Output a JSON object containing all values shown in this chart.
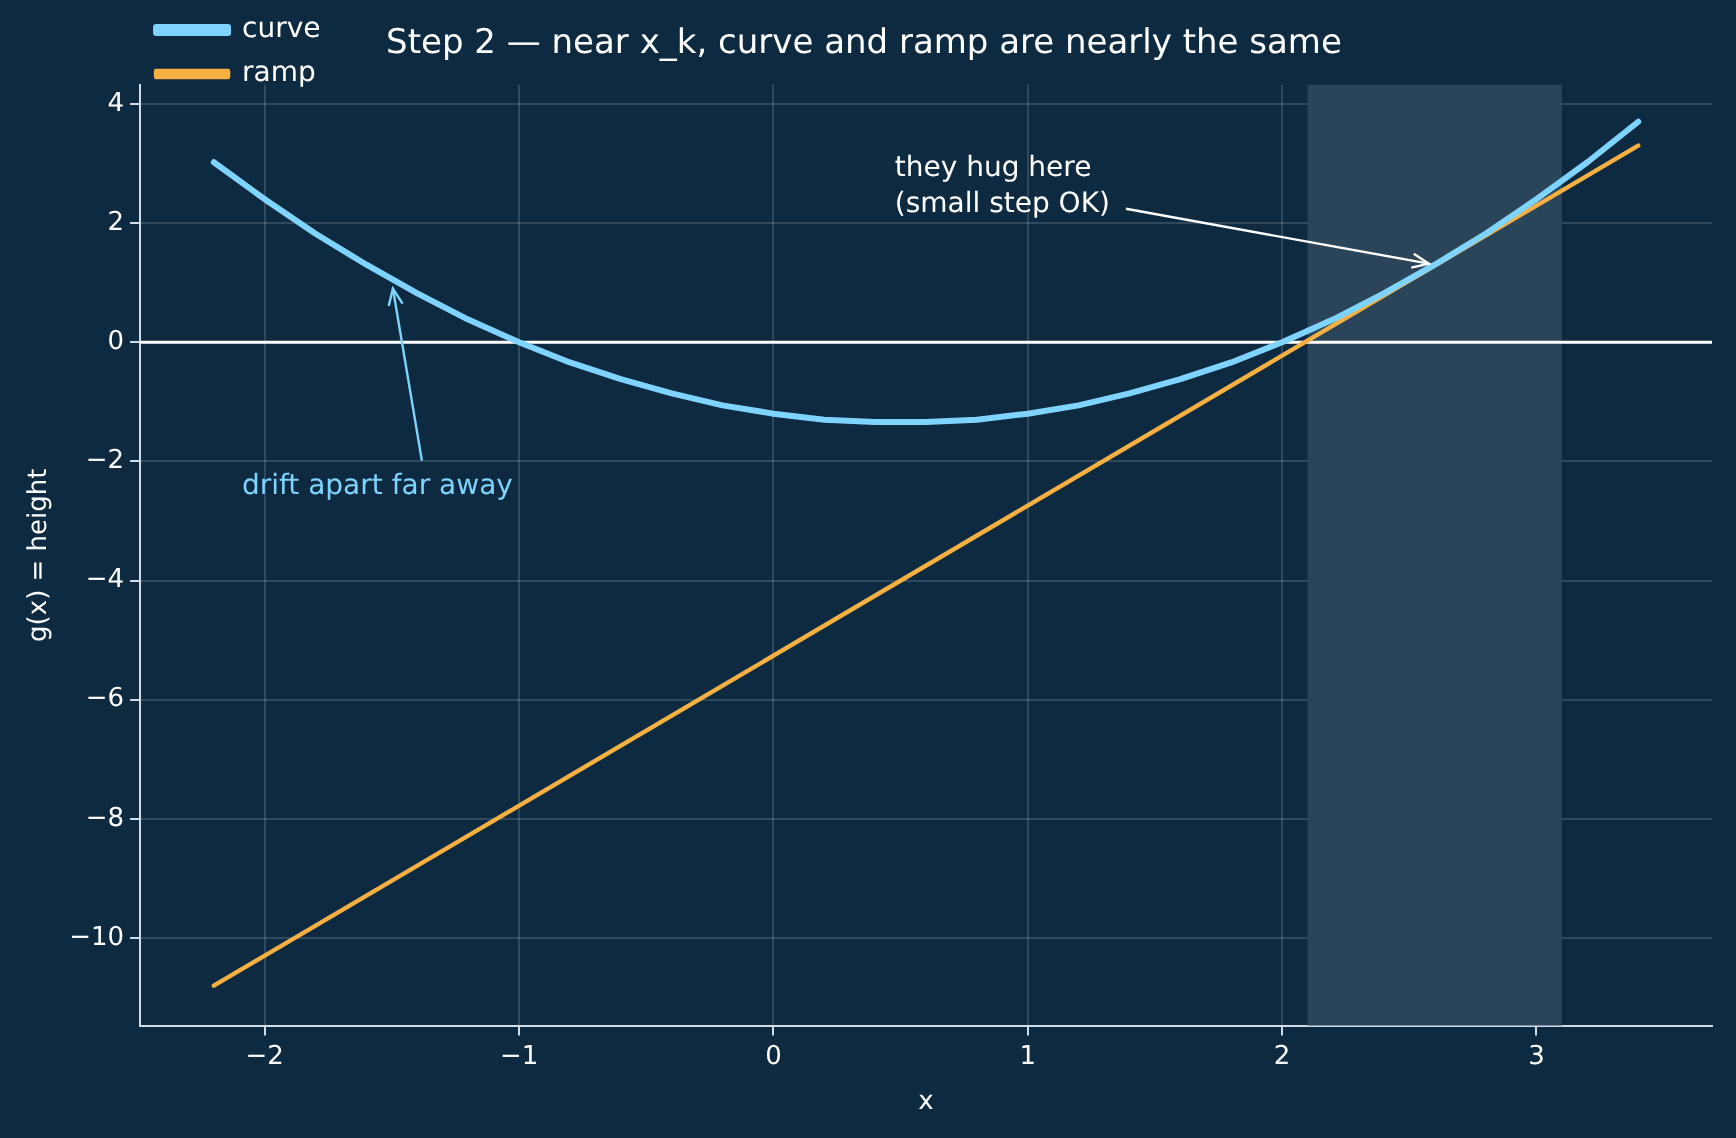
{
  "chart_data": {
    "type": "line",
    "title": "Step 2 — near x_k, curve and ramp are nearly the same",
    "xlabel": "x",
    "ylabel": "g(x) = height",
    "xlim": [
      -2.49,
      3.69
    ],
    "ylim": [
      -11.47,
      4.32
    ],
    "xticks": [
      -2,
      -1,
      0,
      1,
      2,
      3
    ],
    "yticks": [
      -10,
      -8,
      -6,
      -4,
      -2,
      0,
      2,
      4
    ],
    "grid": true,
    "legend": "top left",
    "marker": "none",
    "line_style": "solid",
    "series": [
      {
        "name": "curve",
        "color": "#7fd4ff",
        "x": [
          -2.2,
          -2.0,
          -1.8,
          -1.6,
          -1.4,
          -1.2,
          -1.0,
          -0.8,
          -0.6,
          -0.4,
          -0.2,
          0,
          0.2,
          0.4,
          0.6,
          0.8,
          1.0,
          1.2,
          1.4,
          1.6,
          1.8,
          2.0,
          2.2,
          2.4,
          2.6,
          2.8,
          3.0,
          3.2,
          3.4
        ],
        "values": [
          3.02,
          2.4,
          1.82,
          1.3,
          0.82,
          0.38,
          0,
          -0.34,
          -0.62,
          -0.86,
          -1.06,
          -1.2,
          -1.3,
          -1.34,
          -1.34,
          -1.3,
          -1.2,
          -1.06,
          -0.86,
          -0.62,
          -0.34,
          0,
          0.38,
          0.82,
          1.3,
          1.82,
          2.4,
          3.02,
          3.7
        ]
      },
      {
        "name": "ramp",
        "color": "#f5b041",
        "x": [
          -2.2,
          3.4
        ],
        "values": [
          -10.8,
          3.3
        ]
      }
    ],
    "ref_lines": [
      {
        "axis": "y",
        "value": 0,
        "color": "#ffffff"
      }
    ],
    "bands": [
      {
        "axis": "x",
        "from": 2.1,
        "to": 3.1,
        "color": "#2a4459"
      }
    ],
    "annotations": [
      {
        "text": "they hug here\n(small step OK)",
        "x": 2.6,
        "y": 1.3
      },
      {
        "text": "drift apart far away",
        "x": -1.5,
        "y": 1.0
      }
    ]
  }
}
